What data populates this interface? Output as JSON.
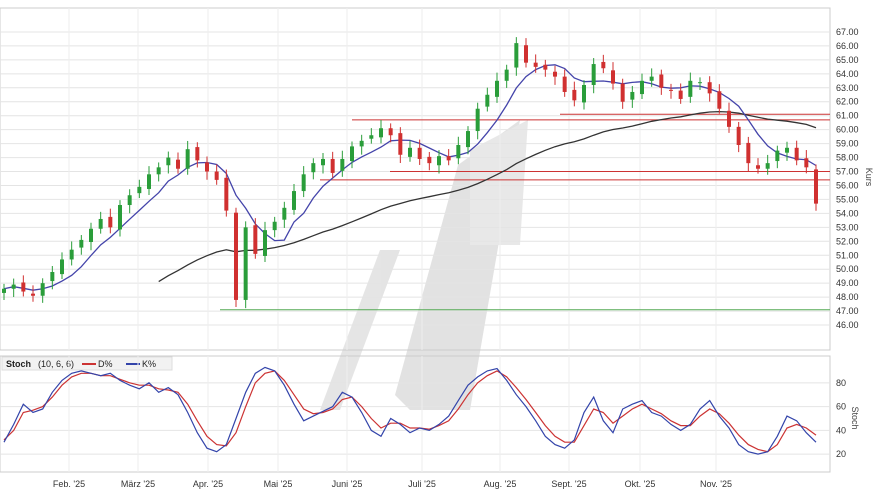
{
  "chart_data": [
    {
      "type": "candlestick",
      "ylabel": "Kurs",
      "ylim": [
        45.0,
        68.0
      ],
      "y_ticks": [
        "46.00",
        "47.00",
        "48.00",
        "49.00",
        "50.00",
        "51.00",
        "52.00",
        "53.00",
        "54.00",
        "55.00",
        "56.00",
        "57.00",
        "58.00",
        "59.00",
        "60.00",
        "61.00",
        "62.00",
        "63.00",
        "64.00",
        "65.00",
        "66.00",
        "67.00"
      ],
      "x_ticks": [
        "Feb. '25",
        "März '25",
        "Apr. '25",
        "Mai '25",
        "Juni '25",
        "Juli '25",
        "Aug. '25",
        "Sept. '25",
        "Okt. '25",
        "Nov. '25"
      ],
      "grid": true,
      "close_values": [
        48.6,
        48.9,
        48.4,
        48.1,
        49.0,
        49.8,
        50.7,
        51.4,
        52.1,
        52.9,
        53.6,
        53.0,
        54.6,
        55.3,
        55.9,
        56.8,
        57.3,
        58.0,
        57.2,
        58.6,
        57.8,
        57.0,
        56.4,
        54.2,
        47.8,
        53.0,
        51.1,
        52.8,
        53.4,
        54.4,
        55.6,
        56.8,
        57.6,
        57.9,
        56.9,
        57.9,
        58.8,
        59.2,
        59.6,
        60.1,
        59.6,
        58.2,
        58.7,
        57.9,
        57.6,
        58.1,
        57.8,
        58.9,
        59.9,
        61.5,
        62.5,
        63.5,
        64.3,
        66.2,
        64.8,
        64.5,
        64.3,
        63.8,
        62.7,
        62.1,
        63.2,
        64.7,
        64.4,
        63.3,
        62.0,
        62.7,
        63.5,
        63.8,
        63.0,
        62.8,
        62.2,
        63.5,
        63.4,
        62.6,
        61.5,
        60.2,
        58.9,
        57.6,
        57.2,
        57.6,
        58.5,
        58.7,
        57.8,
        57.3,
        54.7
      ],
      "hlines": [
        {
          "value": 61.1,
          "color": "#cc3333"
        },
        {
          "value": 60.7,
          "color": "#cc3333"
        },
        {
          "value": 57.0,
          "color": "#cc3333"
        },
        {
          "value": 56.4,
          "color": "#cc3333"
        },
        {
          "value": 47.1,
          "color": "#55aa55"
        }
      ],
      "ma_fast_color": "#4444aa",
      "ma_slow_color": "#333333",
      "up_color": "#2a9d3a",
      "down_color": "#d03030"
    },
    {
      "type": "line",
      "title": "Stoch",
      "legend_params": "(10, 6, 6)",
      "legend_entries": [
        "D%",
        "K%"
      ],
      "ylabel": "Stoch",
      "ylim": [
        10,
        95
      ],
      "y_ticks": [
        "20",
        "40",
        "60",
        "80"
      ],
      "series": [
        {
          "name": "K%",
          "color": "#3344aa",
          "values": [
            30,
            45,
            62,
            55,
            58,
            72,
            82,
            88,
            90,
            88,
            86,
            88,
            82,
            78,
            75,
            80,
            72,
            76,
            70,
            55,
            38,
            25,
            22,
            28,
            50,
            72,
            88,
            93,
            90,
            78,
            62,
            48,
            52,
            56,
            60,
            72,
            68,
            55,
            40,
            35,
            50,
            45,
            38,
            42,
            40,
            45,
            52,
            65,
            78,
            85,
            90,
            92,
            82,
            70,
            60,
            48,
            35,
            28,
            25,
            32,
            55,
            68,
            48,
            38,
            58,
            62,
            65,
            55,
            52,
            45,
            40,
            45,
            58,
            65,
            52,
            42,
            28,
            22,
            20,
            22,
            35,
            52,
            48,
            38,
            30
          ]
        },
        {
          "name": "D%",
          "color": "#cc3333",
          "values": [
            32,
            40,
            55,
            57,
            60,
            68,
            78,
            85,
            88,
            88,
            86,
            86,
            83,
            80,
            78,
            78,
            75,
            74,
            72,
            62,
            48,
            35,
            28,
            27,
            38,
            60,
            80,
            88,
            90,
            82,
            70,
            58,
            54,
            55,
            58,
            66,
            68,
            60,
            50,
            42,
            46,
            46,
            42,
            42,
            41,
            44,
            48,
            58,
            70,
            80,
            86,
            90,
            85,
            76,
            66,
            55,
            44,
            35,
            30,
            30,
            44,
            58,
            55,
            46,
            52,
            58,
            62,
            58,
            54,
            48,
            44,
            44,
            52,
            58,
            54,
            46,
            36,
            28,
            24,
            22,
            28,
            42,
            45,
            42,
            36
          ]
        }
      ]
    }
  ]
}
